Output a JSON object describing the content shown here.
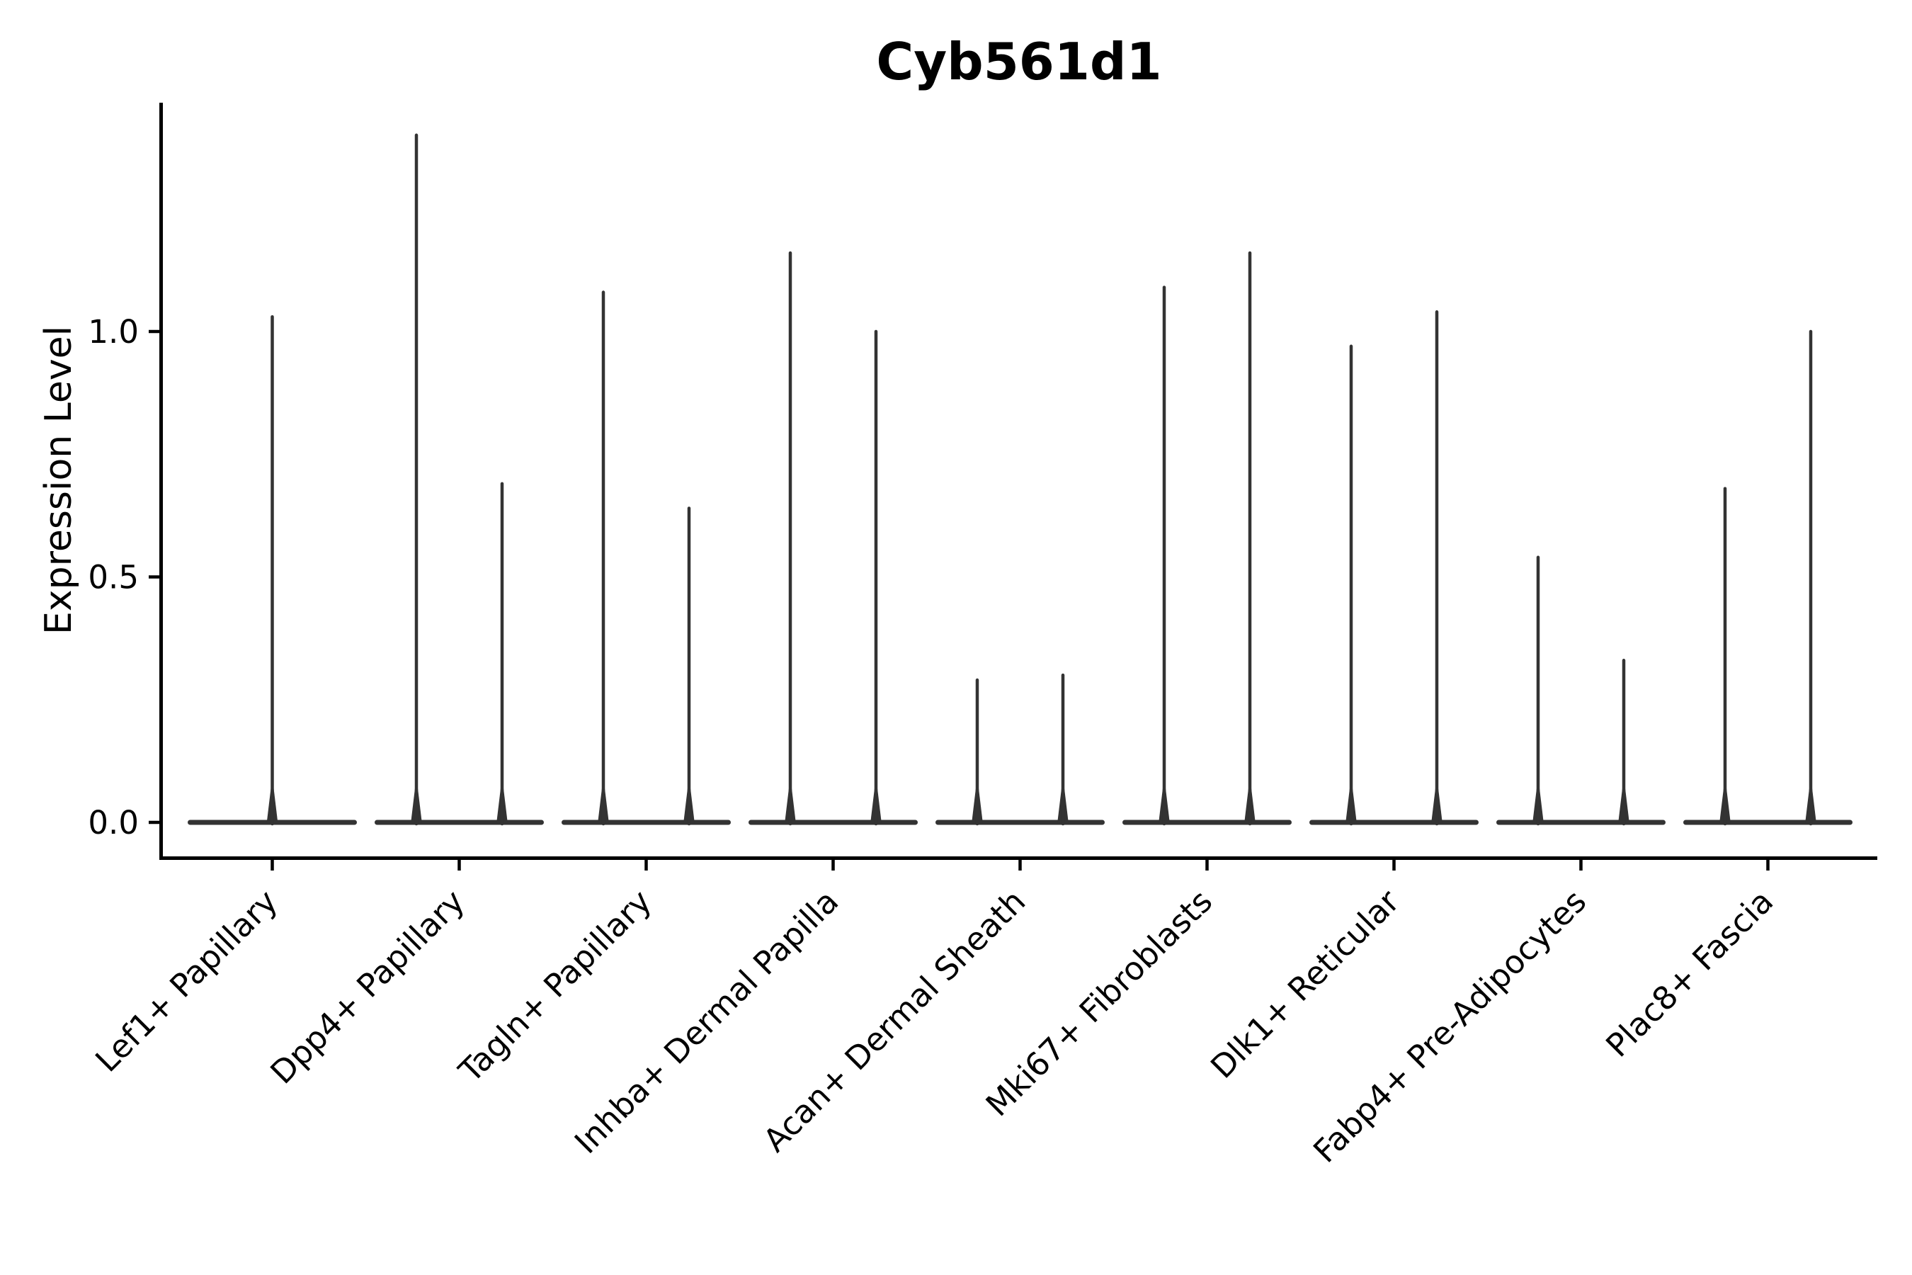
{
  "chart_data": {
    "type": "violin",
    "title": "Cyb561d1",
    "ylabel": "Expression Level",
    "xlabel": "",
    "grid": false,
    "legend": false,
    "background_color": "#ffffff",
    "violin_color": "#333333",
    "axis_color": "#000000",
    "ylim": [
      -0.07,
      1.47
    ],
    "yticks": [
      {
        "value": 0.0,
        "label": "0.0"
      },
      {
        "value": 0.5,
        "label": "0.5"
      },
      {
        "value": 1.0,
        "label": "1.0"
      }
    ],
    "categories": [
      "Lef1+ Papillary",
      "Dpp4+ Papillary",
      "Tagln+ Papillary",
      "Inhba+ Dermal Papilla",
      "Acan+ Dermal Sheath",
      "Mki67+ Fibroblasts",
      "Dlk1+ Reticular",
      "Fabp4+ Pre-Adipocytes",
      "Plac8+ Fascia"
    ],
    "series": [
      {
        "category": "Lef1+ Papillary",
        "violins": [
          {
            "slot": "center",
            "max": 1.03
          }
        ]
      },
      {
        "category": "Dpp4+ Papillary",
        "violins": [
          {
            "slot": "left",
            "max": 1.4
          },
          {
            "slot": "right",
            "max": 0.69
          }
        ]
      },
      {
        "category": "Tagln+ Papillary",
        "violins": [
          {
            "slot": "left",
            "max": 1.08
          },
          {
            "slot": "right",
            "max": 0.64
          }
        ]
      },
      {
        "category": "Inhba+ Dermal Papilla",
        "violins": [
          {
            "slot": "left",
            "max": 1.16
          },
          {
            "slot": "right",
            "max": 1.0
          }
        ]
      },
      {
        "category": "Acan+ Dermal Sheath",
        "violins": [
          {
            "slot": "left",
            "max": 0.29
          },
          {
            "slot": "right",
            "max": 0.3
          }
        ]
      },
      {
        "category": "Mki67+ Fibroblasts",
        "violins": [
          {
            "slot": "left",
            "max": 1.09
          },
          {
            "slot": "right",
            "max": 1.16
          }
        ]
      },
      {
        "category": "Dlk1+ Reticular",
        "violins": [
          {
            "slot": "left",
            "max": 0.97
          },
          {
            "slot": "right",
            "max": 1.04
          }
        ]
      },
      {
        "category": "Fabp4+ Pre-Adipocytes",
        "violins": [
          {
            "slot": "left",
            "max": 0.54
          },
          {
            "slot": "right",
            "max": 0.33
          }
        ]
      },
      {
        "category": "Plac8+ Fascia",
        "violins": [
          {
            "slot": "left",
            "max": 0.68
          },
          {
            "slot": "right",
            "max": 1.0
          }
        ]
      }
    ]
  }
}
